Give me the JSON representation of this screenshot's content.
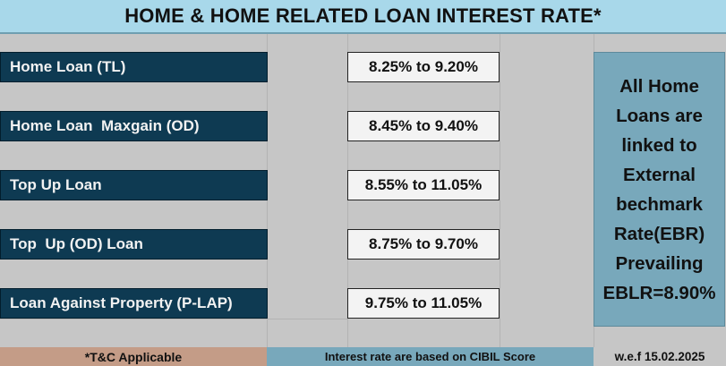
{
  "title": "HOME & HOME RELATED LOAN INTEREST RATE*",
  "loans": [
    {
      "name": "Home Loan (TL)",
      "rate": "8.25% to 9.20%"
    },
    {
      "name": "Home Loan  Maxgain (OD)",
      "rate": "8.45% to 9.40%"
    },
    {
      "name": "Top Up Loan",
      "rate": "8.55% to 11.05%"
    },
    {
      "name": "Top  Up (OD) Loan",
      "rate": "8.75% to 9.70%"
    },
    {
      "name": "Loan Against Property (P-LAP)",
      "rate": "9.75% to 11.05%"
    }
  ],
  "note": "All Home Loans are linked to External bechmark Rate(EBR) Prevailing EBLR=8.90%",
  "footer": {
    "terms": "*T&C Applicable",
    "cibil": "Interest rate are based on CIBIL Score",
    "effective": "w.e.f 15.02.2025"
  },
  "colors": {
    "title_bg": "#a8d8ea",
    "label_bg": "#0e3a52",
    "note_bg": "#78a8bb",
    "terms_bg": "#c49c87",
    "sheet_bg": "#c6c6c6"
  }
}
